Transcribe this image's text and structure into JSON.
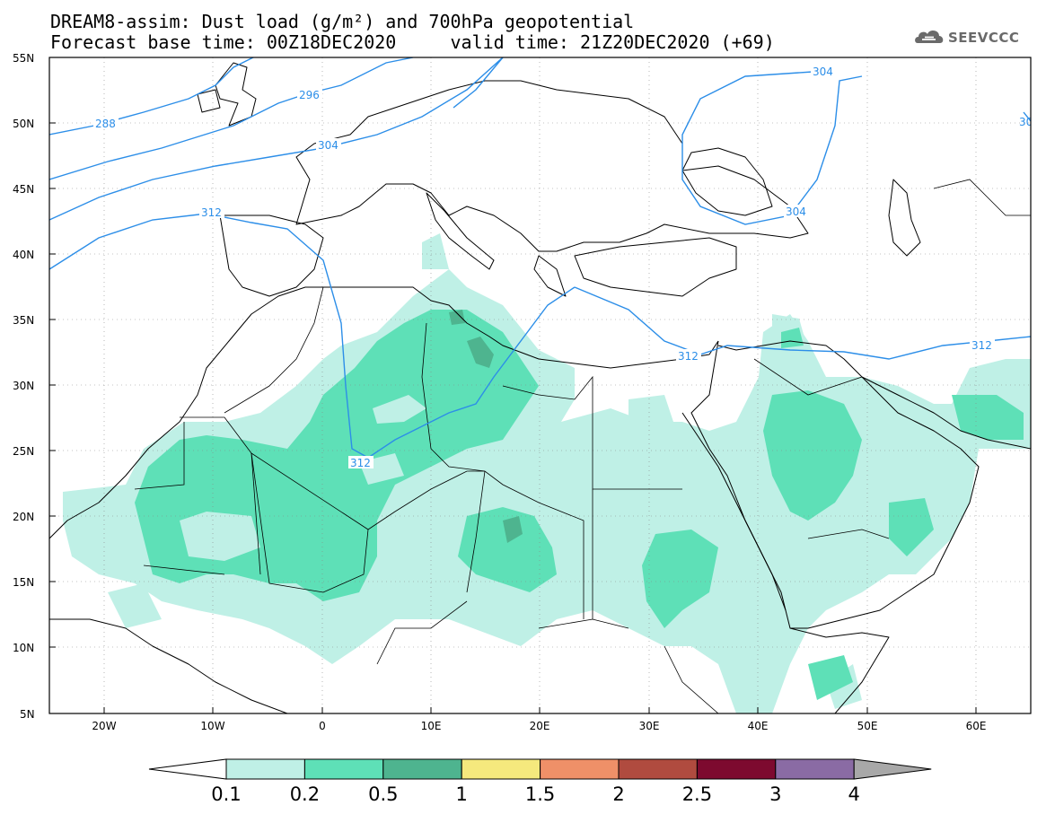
{
  "header": {
    "title_line1": "DREAM8-assim: Dust load (g/m²) and 700hPa geopotential",
    "title_line2": "Forecast base time: 00Z18DEC2020     valid time: 21Z20DEC2020 (+69)",
    "logo_text": "SEEVCCC",
    "logo_icon": "cloud-icon"
  },
  "map": {
    "lat_labels": [
      "55N",
      "50N",
      "45N",
      "40N",
      "35N",
      "30N",
      "25N",
      "20N",
      "15N",
      "10N",
      "5N"
    ],
    "lon_labels": [
      "20W",
      "10W",
      "0",
      "10E",
      "20E",
      "30E",
      "40E",
      "50E",
      "60E"
    ],
    "contour_labels": [
      "288",
      "296",
      "304",
      "304",
      "304",
      "312",
      "312",
      "312",
      "312",
      "30"
    ],
    "colors": {
      "contour": "#2c8ee8",
      "coast": "#000000",
      "grid": "#888888"
    }
  },
  "colorbar": {
    "labels": [
      "0.1",
      "0.2",
      "0.5",
      "1",
      "1.5",
      "2",
      "2.5",
      "3",
      "4"
    ],
    "colors": [
      "#ffffff",
      "#bff0e6",
      "#5ee0b7",
      "#4eb48f",
      "#f5e97d",
      "#ef9068",
      "#b04b3f",
      "#7d0a2f",
      "#8a6ba4",
      "#a8a8a8"
    ]
  }
}
